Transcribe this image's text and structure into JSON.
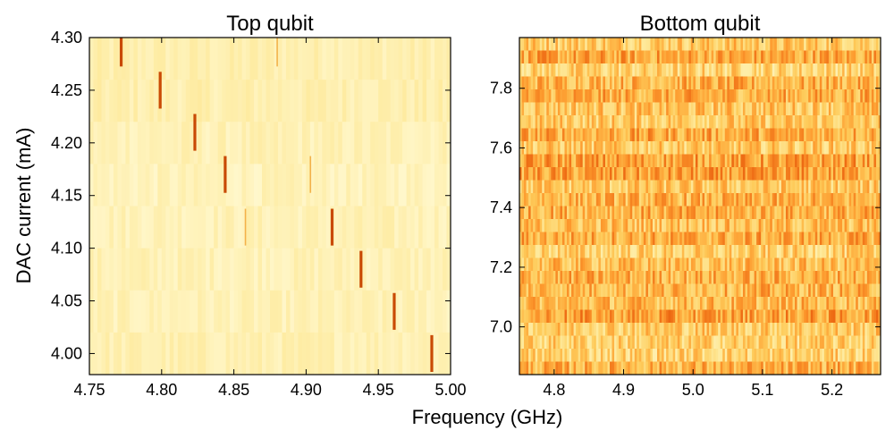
{
  "figure": {
    "xlabel": "Frequency (GHz)",
    "ylabel": "DAC current (mA)"
  },
  "colormap": [
    "#fffbd8",
    "#fee99a",
    "#fecb5a",
    "#fd9a2e",
    "#e85b0b",
    "#b63705",
    "#7a1e02"
  ],
  "chart_data": [
    {
      "type": "heatmap",
      "title": "Top qubit",
      "xlim": [
        4.75,
        5.0
      ],
      "ylim": [
        3.98,
        4.3
      ],
      "xticks": [
        "4.75",
        "4.80",
        "4.85",
        "4.90",
        "4.95",
        "5.00"
      ],
      "yticks": [
        "4.00",
        "4.05",
        "4.10",
        "4.15",
        "4.20",
        "4.25",
        "4.30"
      ],
      "rows": [
        {
          "current": 4.29,
          "resonance_ghz": 4.772
        },
        {
          "current": 4.25,
          "resonance_ghz": 4.799
        },
        {
          "current": 4.21,
          "resonance_ghz": 4.823
        },
        {
          "current": 4.17,
          "resonance_ghz": 4.844
        },
        {
          "current": 4.12,
          "resonance_ghz": 4.918
        },
        {
          "current": 4.08,
          "resonance_ghz": 4.938
        },
        {
          "current": 4.04,
          "resonance_ghz": 4.961
        },
        {
          "current": 4.0,
          "resonance_ghz": 4.987
        }
      ],
      "faint_lines": [
        {
          "current": 4.29,
          "freq_ghz": 4.88
        },
        {
          "current": 4.17,
          "freq_ghz": 4.903
        },
        {
          "current": 4.12,
          "freq_ghz": 4.858
        }
      ]
    },
    {
      "type": "heatmap",
      "title": "Bottom qubit",
      "xlim": [
        4.75,
        5.27
      ],
      "ylim": [
        6.84,
        7.97
      ],
      "xticks": [
        "4.8",
        "4.9",
        "5.0",
        "5.1",
        "5.2"
      ],
      "yticks": [
        "7.0",
        "7.2",
        "7.4",
        "7.6",
        "7.8"
      ],
      "rows": [],
      "faint_lines": []
    }
  ]
}
